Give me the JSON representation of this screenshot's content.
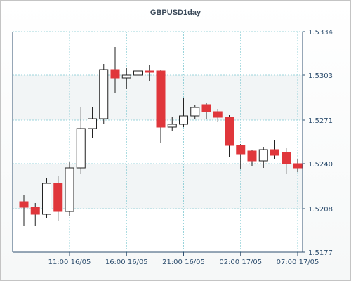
{
  "chart_data": {
    "type": "candlestick",
    "title": "GBPUSD1day",
    "y_ticks": [
      "1.5334",
      "1.5303",
      "1.5271",
      "1.5240",
      "1.5208",
      "1.5177"
    ],
    "ylim": [
      1.5177,
      1.5334
    ],
    "x_ticks": [
      "11:00 16/05",
      "16:00 16/05",
      "21:00 16/05",
      "02:00 17/05",
      "07:00 17/05"
    ],
    "x_tick_bar_index": [
      4,
      9,
      14,
      19,
      24
    ],
    "grid": true,
    "colors": {
      "up": "#ffffff",
      "down": "#e0363b",
      "wick": "#222222",
      "grid": "#7fc9d1",
      "axis": "#2f4f6f"
    },
    "candles": [
      {
        "o": 1.5213,
        "h": 1.5218,
        "l": 1.5196,
        "c": 1.5209
      },
      {
        "o": 1.5209,
        "h": 1.5212,
        "l": 1.5196,
        "c": 1.5204
      },
      {
        "o": 1.5204,
        "h": 1.523,
        "l": 1.5201,
        "c": 1.5226
      },
      {
        "o": 1.5226,
        "h": 1.5231,
        "l": 1.5199,
        "c": 1.5206
      },
      {
        "o": 1.5206,
        "h": 1.5241,
        "l": 1.5203,
        "c": 1.5237
      },
      {
        "o": 1.5237,
        "h": 1.528,
        "l": 1.5233,
        "c": 1.5265
      },
      {
        "o": 1.5265,
        "h": 1.528,
        "l": 1.5258,
        "c": 1.5272
      },
      {
        "o": 1.5272,
        "h": 1.5311,
        "l": 1.5268,
        "c": 1.5307
      },
      {
        "o": 1.5307,
        "h": 1.5323,
        "l": 1.529,
        "c": 1.5301
      },
      {
        "o": 1.5301,
        "h": 1.5308,
        "l": 1.5293,
        "c": 1.5303
      },
      {
        "o": 1.5303,
        "h": 1.5312,
        "l": 1.5299,
        "c": 1.5306
      },
      {
        "o": 1.5306,
        "h": 1.531,
        "l": 1.5299,
        "c": 1.5305
      },
      {
        "o": 1.5306,
        "h": 1.5307,
        "l": 1.5255,
        "c": 1.5266
      },
      {
        "o": 1.5266,
        "h": 1.5273,
        "l": 1.5263,
        "c": 1.5268
      },
      {
        "o": 1.5268,
        "h": 1.5287,
        "l": 1.5266,
        "c": 1.5274
      },
      {
        "o": 1.5274,
        "h": 1.5282,
        "l": 1.5272,
        "c": 1.528
      },
      {
        "o": 1.5282,
        "h": 1.5283,
        "l": 1.5272,
        "c": 1.5277
      },
      {
        "o": 1.5277,
        "h": 1.5279,
        "l": 1.527,
        "c": 1.5273
      },
      {
        "o": 1.5273,
        "h": 1.5275,
        "l": 1.5245,
        "c": 1.5253
      },
      {
        "o": 1.5253,
        "h": 1.5254,
        "l": 1.5236,
        "c": 1.5247
      },
      {
        "o": 1.5249,
        "h": 1.525,
        "l": 1.5238,
        "c": 1.5242
      },
      {
        "o": 1.5242,
        "h": 1.5252,
        "l": 1.5237,
        "c": 1.525
      },
      {
        "o": 1.525,
        "h": 1.5257,
        "l": 1.5243,
        "c": 1.5246
      },
      {
        "o": 1.5248,
        "h": 1.5251,
        "l": 1.5233,
        "c": 1.524
      },
      {
        "o": 1.524,
        "h": 1.5243,
        "l": 1.5234,
        "c": 1.5237
      }
    ]
  }
}
